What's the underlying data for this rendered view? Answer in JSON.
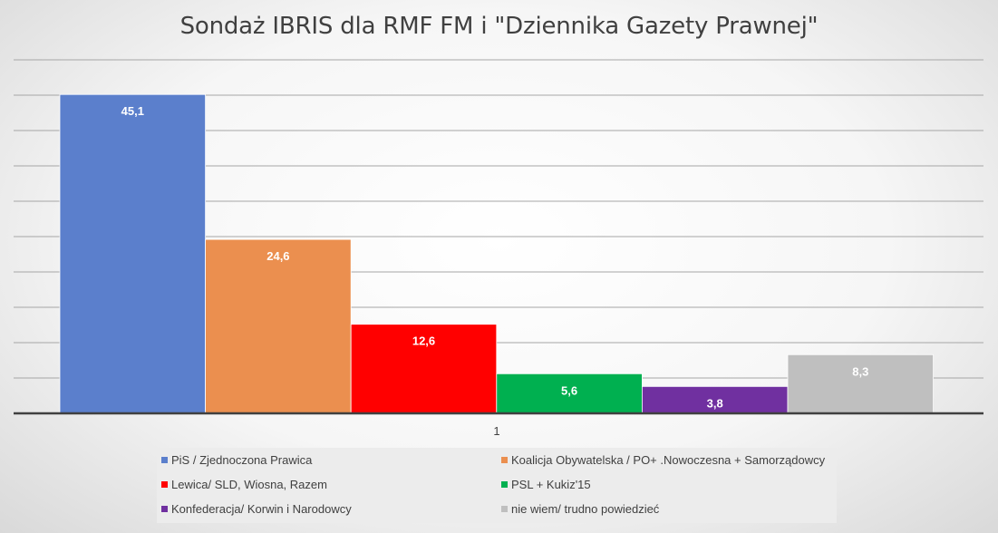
{
  "chart_data": {
    "type": "bar",
    "title": "Sondaż IBRIS dla RMF FM i \"Dziennika Gazety Prawnej\"",
    "categories": [
      "1"
    ],
    "series": [
      {
        "name": "PiS / Zjednoczona Prawica",
        "values": [
          45.1
        ],
        "label": "45,1",
        "color": "#5b7fcc"
      },
      {
        "name": "Koalicja Obywatelska / PO+ .Nowoczesna + Samorządowcy",
        "values": [
          24.6
        ],
        "label": "24,6",
        "color": "#eb8f4f"
      },
      {
        "name": "Lewica/ SLD, Wiosna, Razem",
        "values": [
          12.6
        ],
        "label": "12,6",
        "color": "#ff0000"
      },
      {
        "name": "PSL + Kukiz'15",
        "values": [
          5.6
        ],
        "label": "5,6",
        "color": "#00b050"
      },
      {
        "name": "Konfederacja/ Korwin i Narodowcy",
        "values": [
          3.8
        ],
        "label": "3,8",
        "color": "#7030a0"
      },
      {
        "name": "nie wiem/ trudno powiedzieć",
        "values": [
          8.3
        ],
        "label": "8,3",
        "color": "#bfbfbf"
      }
    ],
    "ylim": [
      0,
      50
    ],
    "grid": true,
    "legend_position": "bottom"
  }
}
